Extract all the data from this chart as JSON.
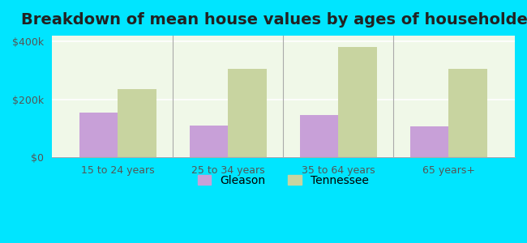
{
  "title": "Breakdown of mean house values by ages of householders",
  "categories": [
    "15 to 24 years",
    "25 to 34 years",
    "35 to 64 years",
    "65 years+"
  ],
  "gleason_values": [
    155000,
    110000,
    145000,
    105000
  ],
  "tennessee_values": [
    235000,
    305000,
    380000,
    305000
  ],
  "gleason_color": "#c8a0d8",
  "tennessee_color": "#c8d4a0",
  "background_color": "#00e5ff",
  "plot_bg": "#f0f8e8",
  "ylabel_ticks": [
    0,
    200000,
    400000
  ],
  "ylabel_labels": [
    "$0",
    "$200k",
    "$400k"
  ],
  "ylim": [
    0,
    420000
  ],
  "title_fontsize": 14,
  "legend_labels": [
    "Gleason",
    "Tennessee"
  ],
  "bar_width": 0.35
}
